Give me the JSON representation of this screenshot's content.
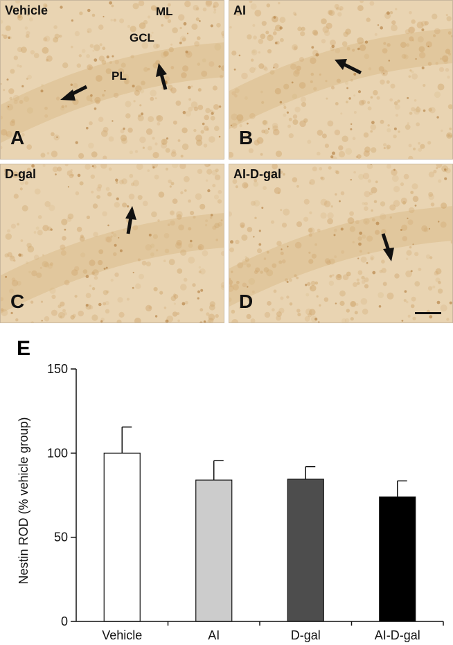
{
  "panels": [
    {
      "id": "A",
      "letter": "A",
      "title": "Vehicle",
      "layers": {
        "ml": "ML",
        "gcl": "GCL",
        "pl": "PL"
      }
    },
    {
      "id": "B",
      "letter": "B",
      "title": "AI"
    },
    {
      "id": "C",
      "letter": "C",
      "title": "D-gal"
    },
    {
      "id": "D",
      "letter": "D",
      "title": "AI-D-gal"
    }
  ],
  "colors": {
    "tissue": "#e9d4b2",
    "tissue_dark": "#d7b883",
    "cell": "#cfa56c",
    "arrow": "#111111"
  },
  "chart_panel_letter": "E",
  "chart_data": {
    "type": "bar",
    "categories": [
      "Vehicle",
      "AI",
      "D-gal",
      "AI-D-gal"
    ],
    "values": [
      100,
      84,
      84.5,
      74
    ],
    "errors": [
      15.5,
      11.5,
      7.5,
      9.5
    ],
    "colors": [
      "#ffffff",
      "#cccccc",
      "#4d4d4d",
      "#000000"
    ],
    "ylabel": "Nestin ROD (% vehicle group)",
    "xlabel": "",
    "ylim": [
      0,
      150
    ],
    "yticks": [
      0,
      50,
      100,
      150
    ],
    "grid": false,
    "legend": "none"
  }
}
